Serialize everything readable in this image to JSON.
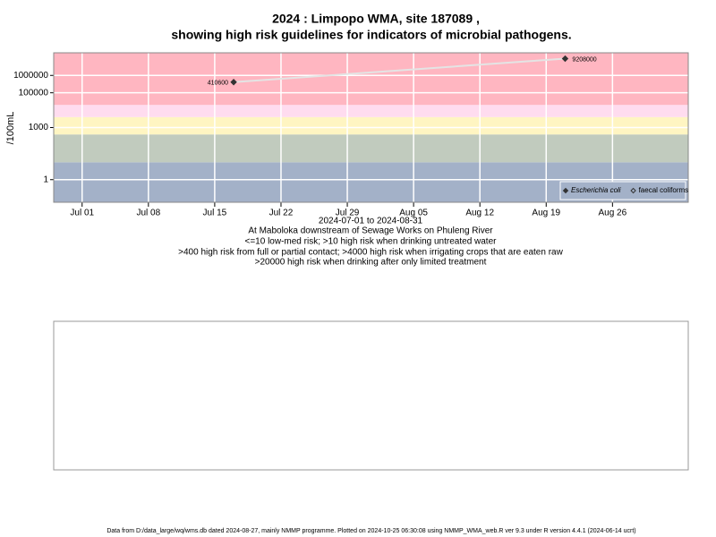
{
  "chart_data": {
    "type": "line",
    "title": "2024 : Limpopo WMA, site 187089 ,",
    "title2": "showing high risk guidelines for indicators of microbial pathogens.",
    "y_label": "/100mL",
    "x_range_label": "2024-07-01 to 2024-08-31",
    "notes": [
      "At Maboloka downstream of Sewage Works on Phuleng River",
      "<=10 low-med risk; >10 high risk when drinking untreated water",
      ">400 high risk from full or partial contact; >4000 high risk when irrigating crops that are eaten raw",
      ">20000 high risk when drinking after only limited treatment"
    ],
    "footer": "Data from D:/data_large/wq/wms.db dated 2024-08-27, mainly NMMP programme. Plotted on 2024-10-25 06:30:08 using NMMP_WMA_web.R ver 9.3 under R version 4.4.1 (2024-06-14 ucrt)",
    "log_y": true,
    "grid": true,
    "legend": "bottom-right",
    "xlim": [
      "2024-06-28",
      "2024-09-03"
    ],
    "xticks": [
      {
        "value": "2024-07-01",
        "label": "Jul 01"
      },
      {
        "value": "2024-07-08",
        "label": "Jul 08"
      },
      {
        "value": "2024-07-15",
        "label": "Jul 15"
      },
      {
        "value": "2024-07-22",
        "label": "Jul 22"
      },
      {
        "value": "2024-07-29",
        "label": "Jul 29"
      },
      {
        "value": "2024-08-05",
        "label": "Aug 05"
      },
      {
        "value": "2024-08-12",
        "label": "Aug 12"
      },
      {
        "value": "2024-08-19",
        "label": "Aug 19"
      },
      {
        "value": "2024-08-26",
        "label": "Aug 26"
      }
    ],
    "ylim": [
      0.05,
      20000000
    ],
    "yticks": [
      1,
      1000,
      100000,
      1000000
    ],
    "bands": [
      {
        "from": null,
        "to": 10,
        "color": "#a3b1c8"
      },
      {
        "from": 10,
        "to": 400,
        "color": "#c1cbbe"
      },
      {
        "from": 400,
        "to": 4000,
        "color": "#fff5c2"
      },
      {
        "from": 4000,
        "to": 20000,
        "color": "#ffdcef"
      },
      {
        "from": 20000,
        "to": null,
        "color": "#ffb6c1"
      }
    ],
    "series": [
      {
        "name": "Escherichia coli",
        "color": "#333333",
        "line_color": "#e4e4e4",
        "marker": "filled",
        "x": [
          "2024-07-17",
          "2024-08-21"
        ],
        "values": [
          410600,
          9208000
        ]
      },
      {
        "name": "faecal coliforms",
        "color": "#333333",
        "line_color": "#e4e4e4",
        "marker": "open",
        "x": [],
        "values": []
      }
    ]
  }
}
